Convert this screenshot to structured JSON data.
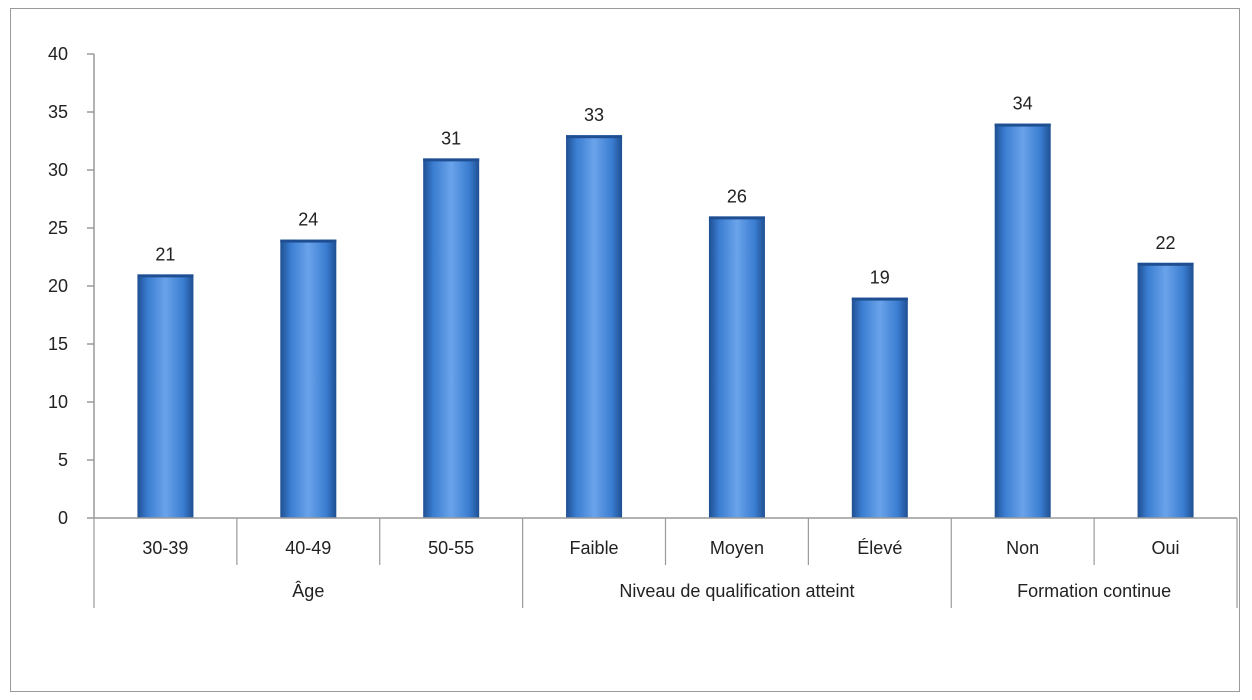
{
  "chart_data": {
    "type": "bar",
    "categories": [
      "30-39",
      "40-49",
      "50-55",
      "Faible",
      "Moyen",
      "Élevé",
      "Non",
      "Oui"
    ],
    "groups": [
      {
        "label": "Âge",
        "categories": [
          "30-39",
          "40-49",
          "50-55"
        ]
      },
      {
        "label": "Niveau de qualification atteint",
        "categories": [
          "Faible",
          "Moyen",
          "Élevé"
        ]
      },
      {
        "label": "Formation continue",
        "categories": [
          "Non",
          "Oui"
        ]
      }
    ],
    "values": [
      21,
      24,
      31,
      33,
      26,
      19,
      34,
      22
    ],
    "data_labels": [
      "21",
      "24",
      "31",
      "33",
      "26",
      "19",
      "34",
      "22"
    ],
    "ylim": [
      0,
      40
    ],
    "yticks": [
      "0",
      "5",
      "10",
      "15",
      "20",
      "25",
      "30",
      "35",
      "40"
    ],
    "grid": false,
    "legend": "none",
    "colors": {
      "bar": "#3a7dd1",
      "bar_dark": "#1f4f92",
      "bar_light": "#6aa3ea",
      "axis": "#9a9a9a"
    }
  }
}
